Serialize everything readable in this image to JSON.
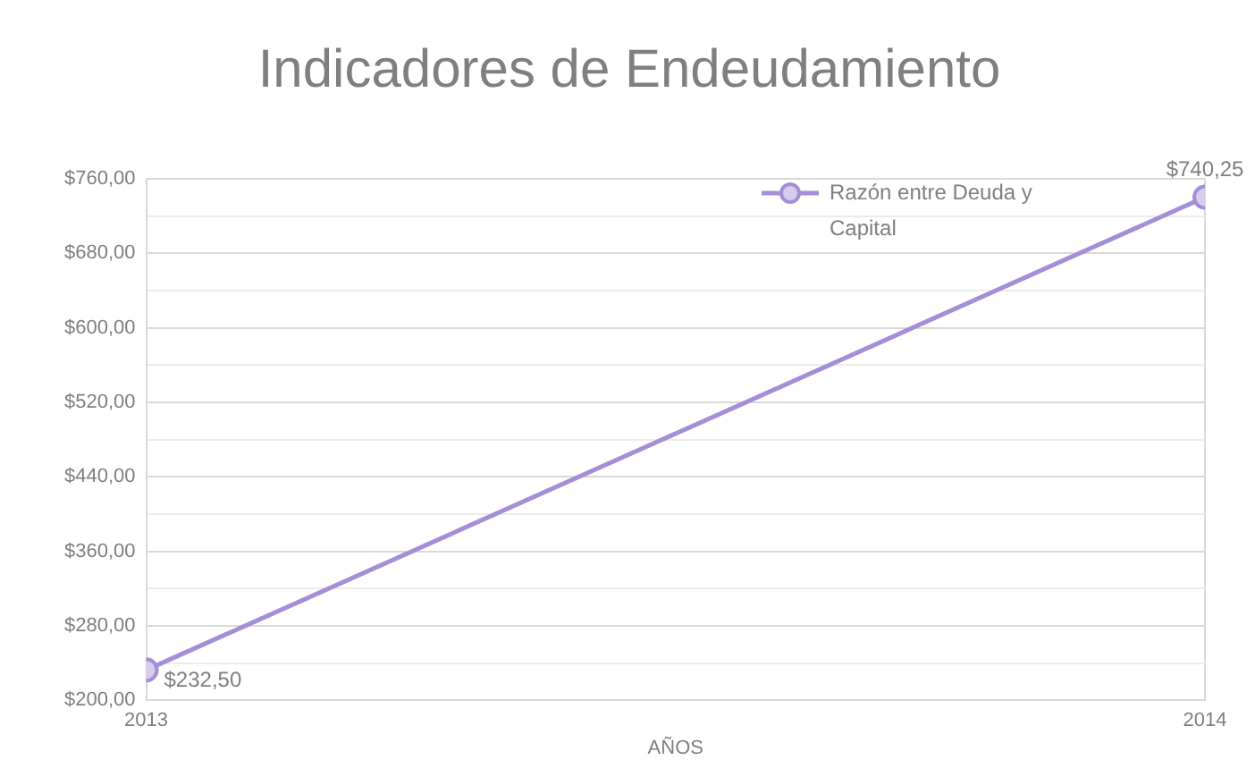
{
  "chart_data": {
    "type": "line",
    "title": "Indicadores de Endeudamiento",
    "xlabel": "AÑOS",
    "x": [
      2013,
      2014
    ],
    "series": [
      {
        "name": "Razón entre Deuda y Capital",
        "color": "#a48ed8",
        "values": [
          232.5,
          740.25
        ],
        "value_labels": [
          "$232,50",
          "$740,25"
        ]
      }
    ],
    "xlim": [
      2013,
      2014
    ],
    "xticks": [
      2013,
      2014
    ],
    "ylim": [
      200,
      760
    ],
    "yticks": [
      {
        "value": 200,
        "label": "$200,00"
      },
      {
        "value": 240,
        "label": null
      },
      {
        "value": 280,
        "label": "$280,00"
      },
      {
        "value": 320,
        "label": null
      },
      {
        "value": 360,
        "label": "$360,00"
      },
      {
        "value": 400,
        "label": null
      },
      {
        "value": 440,
        "label": "$440,00"
      },
      {
        "value": 480,
        "label": null
      },
      {
        "value": 520,
        "label": "$520,00"
      },
      {
        "value": 560,
        "label": null
      },
      {
        "value": 600,
        "label": "$600,00"
      },
      {
        "value": 640,
        "label": null
      },
      {
        "value": 680,
        "label": "$680,00"
      },
      {
        "value": 720,
        "label": null
      },
      {
        "value": 760,
        "label": "$760,00"
      }
    ],
    "grid": true,
    "legend": "top right",
    "marker": "circle",
    "line_style": "solid"
  }
}
